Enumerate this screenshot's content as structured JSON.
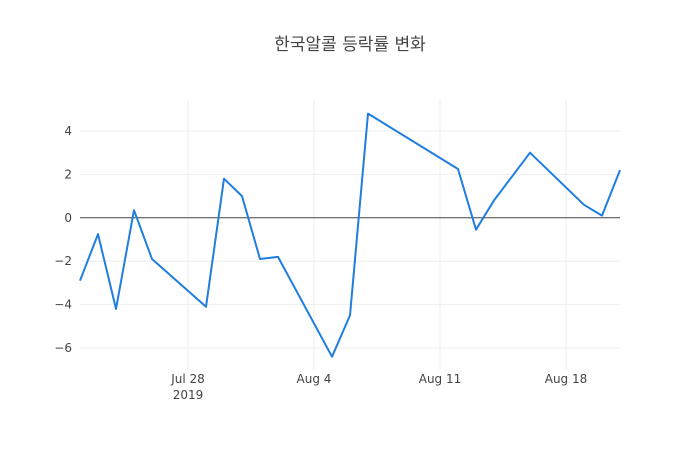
{
  "chart_data": {
    "type": "line",
    "title": "한국알콜 등락률 변화",
    "xlabel": "",
    "ylabel": "",
    "x_range": [
      "2019-07-22",
      "2019-08-21"
    ],
    "ylim": [
      -7,
      5.5
    ],
    "grid": true,
    "zero_line": true,
    "line_color": "#1f7ee0",
    "x_ticks": [
      {
        "date": "2019-07-28",
        "label": "Jul 28",
        "sublabel": "2019"
      },
      {
        "date": "2019-08-04",
        "label": "Aug 4",
        "sublabel": ""
      },
      {
        "date": "2019-08-11",
        "label": "Aug 11",
        "sublabel": ""
      },
      {
        "date": "2019-08-18",
        "label": "Aug 18",
        "sublabel": ""
      }
    ],
    "y_ticks": [
      {
        "value": 4,
        "label": "4"
      },
      {
        "value": 2,
        "label": "2"
      },
      {
        "value": 0,
        "label": "0"
      },
      {
        "value": -2,
        "label": "−2"
      },
      {
        "value": -4,
        "label": "−4"
      },
      {
        "value": -6,
        "label": "−6"
      }
    ],
    "series": [
      {
        "x": [
          "2019-07-22",
          "2019-07-23",
          "2019-07-24",
          "2019-07-25",
          "2019-07-26",
          "2019-07-29",
          "2019-07-30",
          "2019-07-31",
          "2019-08-01",
          "2019-08-02",
          "2019-08-05",
          "2019-08-06",
          "2019-08-07",
          "2019-08-12",
          "2019-08-13",
          "2019-08-14",
          "2019-08-16",
          "2019-08-19",
          "2019-08-20",
          "2019-08-21"
        ],
        "y": [
          -2.9,
          -0.75,
          -4.2,
          0.35,
          -1.9,
          -4.1,
          1.8,
          1.0,
          -1.9,
          -1.8,
          -6.4,
          -4.5,
          4.8,
          2.25,
          -0.55,
          0.8,
          3.0,
          0.6,
          0.1,
          2.2
        ]
      }
    ]
  }
}
